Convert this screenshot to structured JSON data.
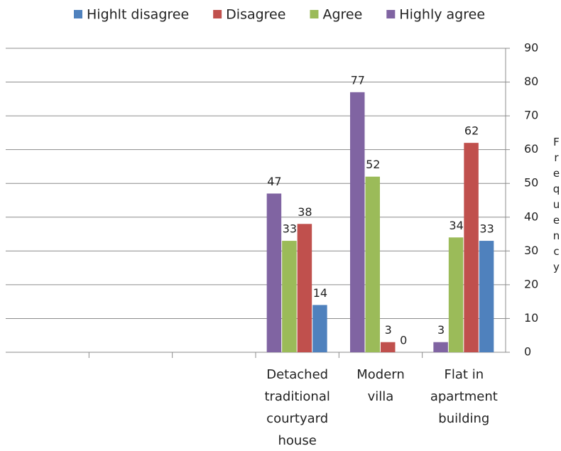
{
  "chart_data": {
    "type": "bar",
    "categories": [
      null,
      null,
      null,
      "Detached traditional courtyard house",
      "Modern villa",
      "Flat in apartment building"
    ],
    "series": [
      {
        "name": "Highlt disagree",
        "color": "#4f81bd",
        "values": [
          null,
          null,
          null,
          14,
          0,
          33
        ]
      },
      {
        "name": "Disagree",
        "color": "#c0504d",
        "values": [
          null,
          null,
          null,
          38,
          3,
          62
        ]
      },
      {
        "name": "Agree",
        "color": "#9bbb59",
        "values": [
          null,
          null,
          null,
          33,
          52,
          34
        ]
      },
      {
        "name": "Highly agree",
        "color": "#8064a2",
        "values": [
          null,
          null,
          null,
          47,
          77,
          3
        ]
      }
    ],
    "y_label": "Frequency",
    "ylim": [
      0,
      90
    ],
    "yticks": [
      0,
      10,
      20,
      30,
      40,
      50,
      60,
      70,
      80,
      90
    ],
    "grid": true,
    "legend": "top"
  }
}
